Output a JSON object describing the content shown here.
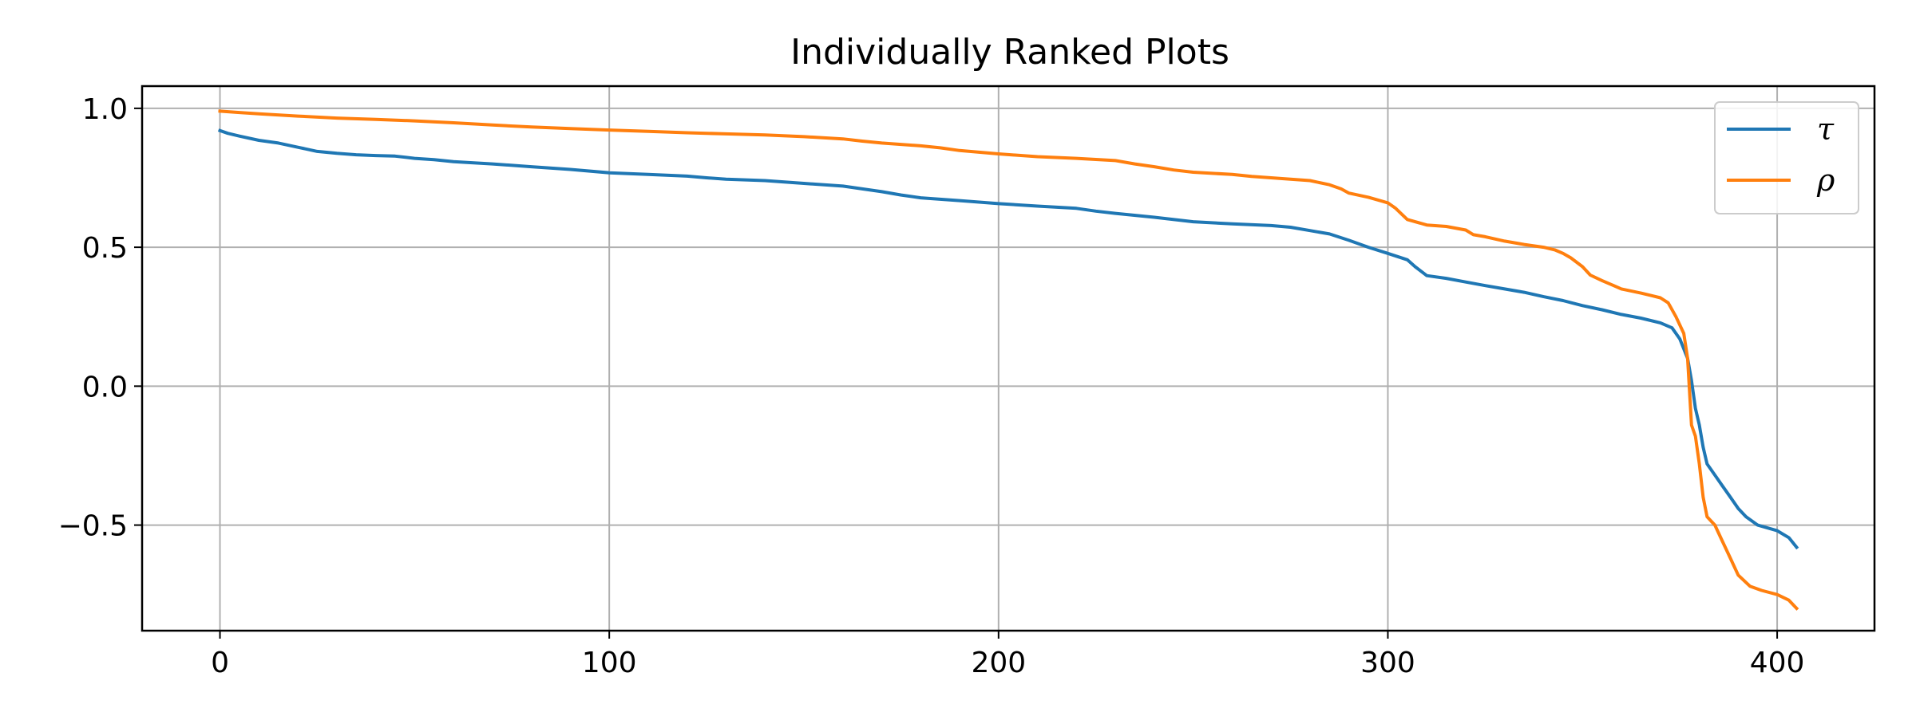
{
  "chart_data": {
    "type": "line",
    "title": "Individually Ranked Plots",
    "xlabel": "",
    "ylabel": "",
    "xlim": [
      -20,
      425
    ],
    "ylim": [
      -0.88,
      1.08
    ],
    "xticks": [
      0,
      100,
      200,
      300,
      400
    ],
    "xtick_labels": [
      "0",
      "100",
      "200",
      "300",
      "400"
    ],
    "yticks": [
      -0.5,
      0.0,
      0.5,
      1.0
    ],
    "ytick_labels": [
      "−0.5",
      "0.0",
      "0.5",
      "1.0"
    ],
    "grid": true,
    "legend_position": "top-right",
    "series": [
      {
        "name": "τ",
        "color": "#1f77b4",
        "points": [
          [
            0,
            0.92
          ],
          [
            2,
            0.91
          ],
          [
            5,
            0.9
          ],
          [
            10,
            0.885
          ],
          [
            15,
            0.875
          ],
          [
            20,
            0.86
          ],
          [
            25,
            0.845
          ],
          [
            30,
            0.838
          ],
          [
            35,
            0.833
          ],
          [
            40,
            0.83
          ],
          [
            45,
            0.828
          ],
          [
            50,
            0.82
          ],
          [
            55,
            0.815
          ],
          [
            60,
            0.808
          ],
          [
            70,
            0.8
          ],
          [
            80,
            0.79
          ],
          [
            90,
            0.78
          ],
          [
            100,
            0.768
          ],
          [
            110,
            0.762
          ],
          [
            120,
            0.756
          ],
          [
            125,
            0.75
          ],
          [
            130,
            0.745
          ],
          [
            140,
            0.74
          ],
          [
            150,
            0.73
          ],
          [
            160,
            0.72
          ],
          [
            165,
            0.71
          ],
          [
            170,
            0.7
          ],
          [
            175,
            0.688
          ],
          [
            180,
            0.678
          ],
          [
            190,
            0.668
          ],
          [
            200,
            0.657
          ],
          [
            210,
            0.648
          ],
          [
            220,
            0.64
          ],
          [
            225,
            0.63
          ],
          [
            230,
            0.622
          ],
          [
            240,
            0.608
          ],
          [
            250,
            0.592
          ],
          [
            260,
            0.584
          ],
          [
            270,
            0.578
          ],
          [
            275,
            0.572
          ],
          [
            280,
            0.56
          ],
          [
            285,
            0.548
          ],
          [
            290,
            0.525
          ],
          [
            295,
            0.5
          ],
          [
            300,
            0.478
          ],
          [
            305,
            0.455
          ],
          [
            307,
            0.43
          ],
          [
            310,
            0.398
          ],
          [
            315,
            0.388
          ],
          [
            320,
            0.375
          ],
          [
            325,
            0.362
          ],
          [
            330,
            0.35
          ],
          [
            335,
            0.338
          ],
          [
            340,
            0.322
          ],
          [
            345,
            0.308
          ],
          [
            350,
            0.29
          ],
          [
            355,
            0.275
          ],
          [
            360,
            0.258
          ],
          [
            365,
            0.245
          ],
          [
            370,
            0.228
          ],
          [
            373,
            0.21
          ],
          [
            375,
            0.17
          ],
          [
            377,
            0.1
          ],
          [
            378,
            0.02
          ],
          [
            379,
            -0.08
          ],
          [
            380,
            -0.14
          ],
          [
            381,
            -0.22
          ],
          [
            382,
            -0.28
          ],
          [
            384,
            -0.32
          ],
          [
            386,
            -0.36
          ],
          [
            388,
            -0.4
          ],
          [
            390,
            -0.44
          ],
          [
            392,
            -0.47
          ],
          [
            395,
            -0.5
          ],
          [
            400,
            -0.52
          ],
          [
            403,
            -0.545
          ],
          [
            405,
            -0.58
          ]
        ]
      },
      {
        "name": "ρ",
        "color": "#ff7f0e",
        "points": [
          [
            0,
            0.99
          ],
          [
            5,
            0.985
          ],
          [
            10,
            0.98
          ],
          [
            20,
            0.972
          ],
          [
            30,
            0.965
          ],
          [
            40,
            0.96
          ],
          [
            50,
            0.955
          ],
          [
            60,
            0.948
          ],
          [
            70,
            0.94
          ],
          [
            80,
            0.933
          ],
          [
            90,
            0.927
          ],
          [
            100,
            0.922
          ],
          [
            110,
            0.917
          ],
          [
            120,
            0.912
          ],
          [
            130,
            0.908
          ],
          [
            140,
            0.904
          ],
          [
            150,
            0.898
          ],
          [
            160,
            0.89
          ],
          [
            165,
            0.882
          ],
          [
            170,
            0.875
          ],
          [
            180,
            0.865
          ],
          [
            185,
            0.858
          ],
          [
            190,
            0.848
          ],
          [
            200,
            0.836
          ],
          [
            210,
            0.826
          ],
          [
            220,
            0.82
          ],
          [
            230,
            0.812
          ],
          [
            235,
            0.8
          ],
          [
            240,
            0.79
          ],
          [
            245,
            0.778
          ],
          [
            250,
            0.77
          ],
          [
            260,
            0.762
          ],
          [
            265,
            0.755
          ],
          [
            270,
            0.75
          ],
          [
            280,
            0.74
          ],
          [
            285,
            0.725
          ],
          [
            288,
            0.71
          ],
          [
            290,
            0.695
          ],
          [
            295,
            0.68
          ],
          [
            300,
            0.66
          ],
          [
            302,
            0.64
          ],
          [
            305,
            0.6
          ],
          [
            310,
            0.58
          ],
          [
            315,
            0.575
          ],
          [
            320,
            0.562
          ],
          [
            322,
            0.545
          ],
          [
            325,
            0.538
          ],
          [
            330,
            0.522
          ],
          [
            335,
            0.51
          ],
          [
            340,
            0.5
          ],
          [
            343,
            0.49
          ],
          [
            345,
            0.478
          ],
          [
            347,
            0.462
          ],
          [
            350,
            0.43
          ],
          [
            352,
            0.4
          ],
          [
            355,
            0.38
          ],
          [
            358,
            0.362
          ],
          [
            360,
            0.35
          ],
          [
            365,
            0.335
          ],
          [
            368,
            0.325
          ],
          [
            370,
            0.318
          ],
          [
            372,
            0.3
          ],
          [
            374,
            0.25
          ],
          [
            376,
            0.19
          ],
          [
            377,
            0.1
          ],
          [
            378,
            -0.14
          ],
          [
            379,
            -0.18
          ],
          [
            380,
            -0.28
          ],
          [
            381,
            -0.4
          ],
          [
            382,
            -0.47
          ],
          [
            384,
            -0.5
          ],
          [
            386,
            -0.56
          ],
          [
            388,
            -0.62
          ],
          [
            390,
            -0.68
          ],
          [
            393,
            -0.72
          ],
          [
            396,
            -0.735
          ],
          [
            400,
            -0.75
          ],
          [
            403,
            -0.77
          ],
          [
            405,
            -0.8
          ]
        ]
      }
    ]
  }
}
